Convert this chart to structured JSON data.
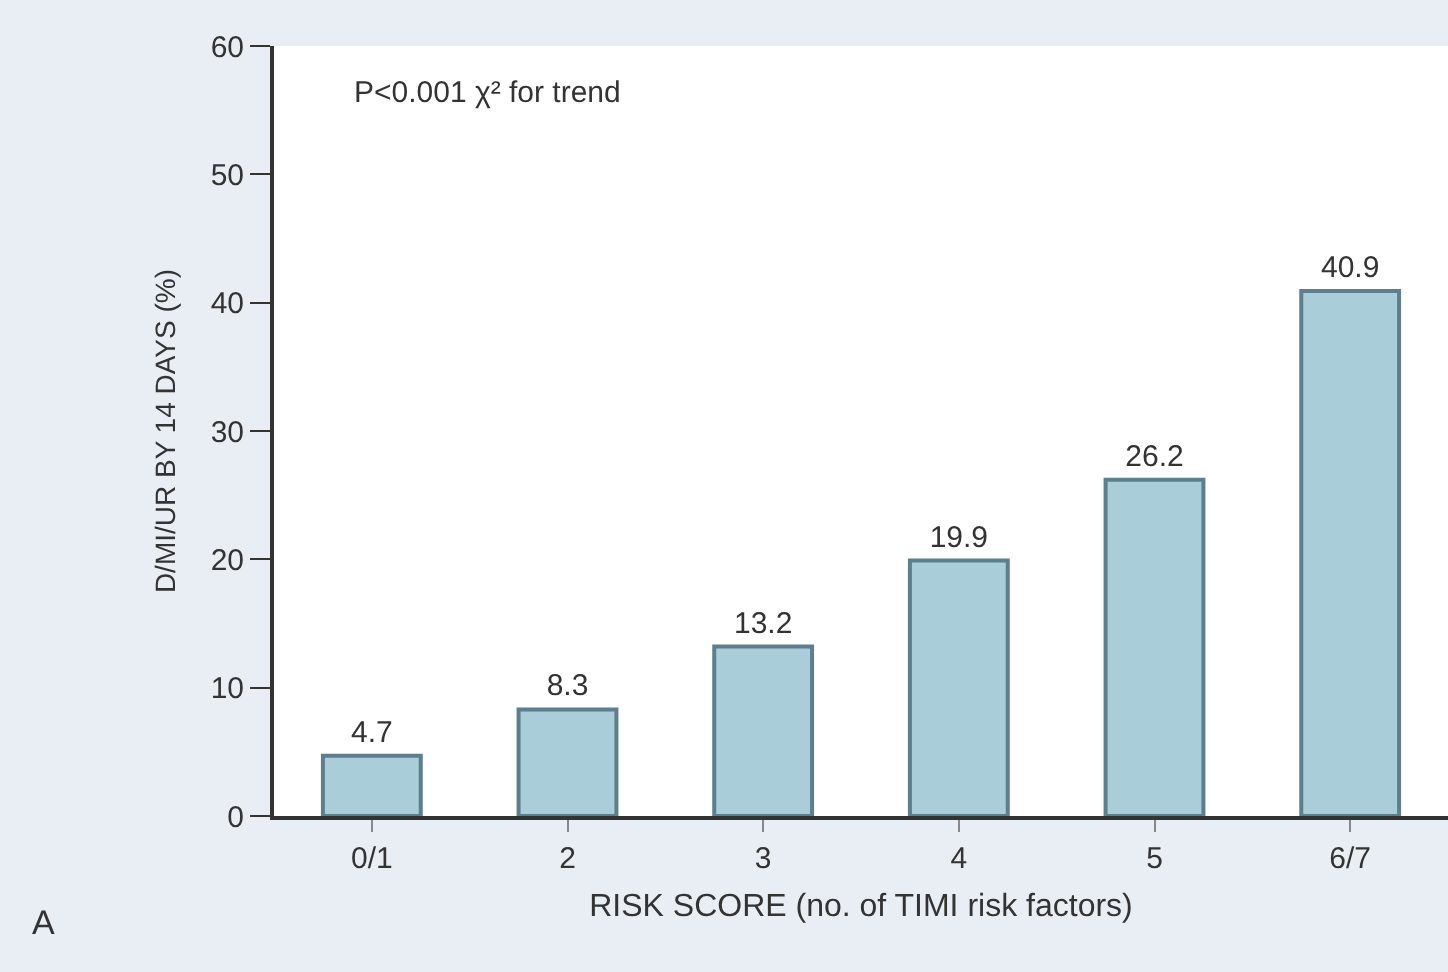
{
  "chart_data": {
    "type": "bar",
    "categories": [
      "0/1",
      "2",
      "3",
      "4",
      "5",
      "6/7"
    ],
    "values": [
      4.7,
      8.3,
      13.2,
      19.9,
      26.2,
      40.9
    ],
    "color": "#a9cdd9",
    "ylim": [
      0,
      60
    ],
    "yticks": [
      0,
      10,
      20,
      30,
      40,
      50,
      60
    ],
    "xlabel": "RISK SCORE (no. of TIMI risk factors)",
    "ylabel": "D/MI/UR BY 14 DAYS (%)",
    "annotations": [
      "P<0.001 χ² for trend",
      "A"
    ],
    "data_labels": true
  }
}
